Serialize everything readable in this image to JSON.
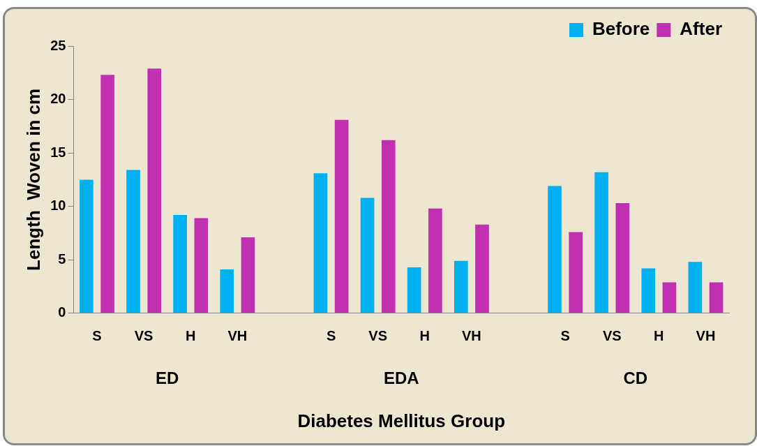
{
  "chart_data": {
    "type": "bar",
    "xlabel": "Diabetes Mellitus Group",
    "ylabel": "Length  Woven in cm",
    "categories": [
      "S",
      "VS",
      "H",
      "VH",
      null,
      "S",
      "VS",
      "H",
      "VH",
      null,
      "S",
      "VS",
      "H",
      "VH"
    ],
    "series": [
      {
        "name": "Before",
        "color": "#00b0f0",
        "values": [
          12.5,
          13.4,
          9.2,
          4.1,
          null,
          13.1,
          10.8,
          4.3,
          4.9,
          null,
          11.9,
          13.2,
          4.2,
          4.8
        ]
      },
      {
        "name": "After",
        "color": "#c030b0",
        "values": [
          22.3,
          22.9,
          8.9,
          7.1,
          null,
          18.1,
          16.2,
          9.8,
          8.3,
          null,
          7.6,
          10.3,
          2.9,
          2.9
        ]
      }
    ],
    "annotations": [
      "ED",
      "EDA",
      "CD"
    ],
    "ylim": [
      0,
      25
    ],
    "yticks": [
      0,
      5,
      10,
      15,
      20,
      25
    ],
    "grid": false,
    "legend": "top right"
  }
}
